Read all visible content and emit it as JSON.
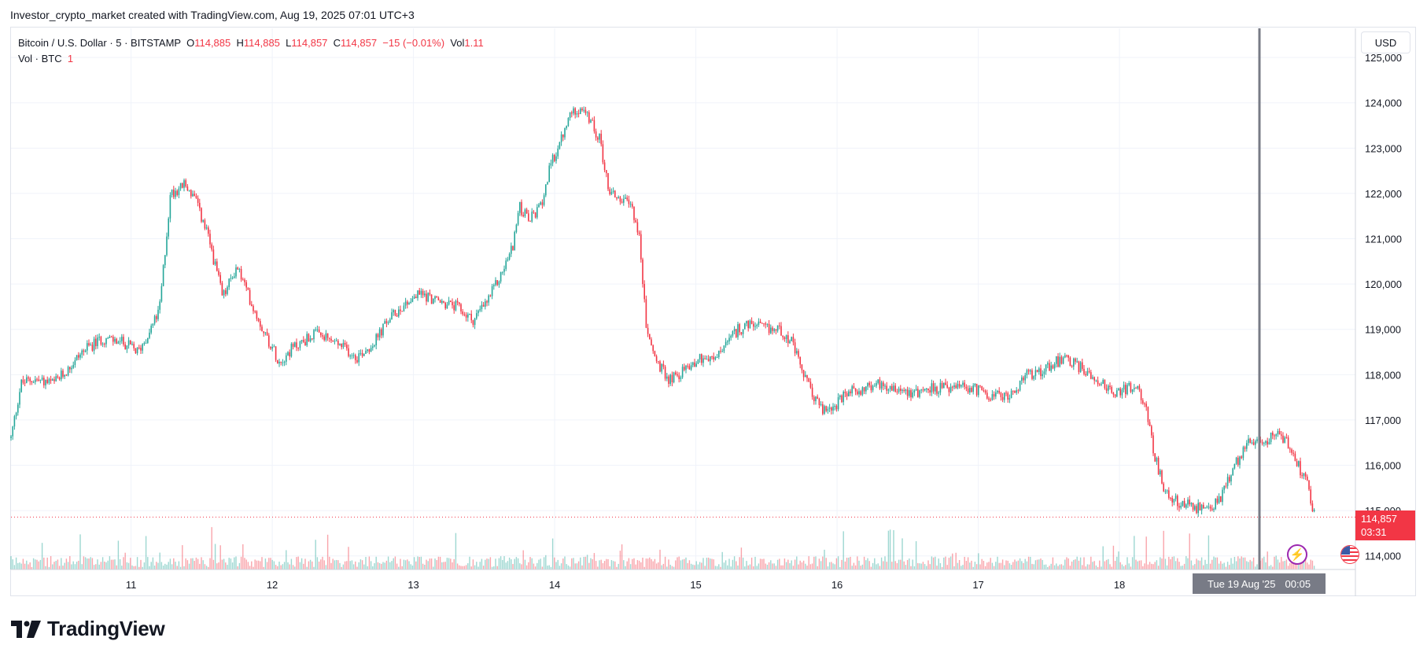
{
  "header": {
    "text": "Investor_crypto_market created with TradingView.com, Aug 19, 2025 07:01 UTC+3"
  },
  "legend": {
    "symbol": "Bitcoin / U.S. Dollar · 5 · BITSTAMP",
    "o_label": "O",
    "o_value": "114,885",
    "h_label": "H",
    "h_value": "114,885",
    "l_label": "L",
    "l_value": "114,857",
    "c_label": "C",
    "c_value": "114,857",
    "change": "−15 (−0.01%)",
    "vol_label": "Vol",
    "vol_value": "1.11",
    "vol_row_label": "Vol · BTC",
    "vol_row_value": "1"
  },
  "currency_button": "USD",
  "price_badge": {
    "price": "114,857",
    "countdown": "03:31"
  },
  "crosshair_time": {
    "date": "Tue 19 Aug '25",
    "time": "00:05"
  },
  "footer": {
    "brand": "TradingView"
  },
  "colors": {
    "up": "#26a69a",
    "down": "#f23645",
    "grid": "#f0f3fa",
    "text": "#131722",
    "crosshair": "#787b86"
  },
  "icons": {
    "logo": "tradingview-logo-icon",
    "flash": "lightning-icon",
    "flag": "us-flag-icon"
  },
  "chart_data": {
    "type": "candlestick",
    "title": "Bitcoin / U.S. Dollar · 5 · BITSTAMP",
    "x_tick_labels": [
      "11",
      "12",
      "13",
      "14",
      "15",
      "16",
      "17",
      "18"
    ],
    "y_tick_labels": [
      "114,000",
      "115,000",
      "116,000",
      "117,000",
      "118,000",
      "119,000",
      "120,000",
      "121,000",
      "122,000",
      "123,000",
      "124,000",
      "125,000"
    ],
    "ylim": [
      113700,
      125100
    ],
    "last_price": 114857,
    "price_path": [
      {
        "x": 10.15,
        "y": 116600
      },
      {
        "x": 10.22,
        "y": 117800
      },
      {
        "x": 10.3,
        "y": 117900
      },
      {
        "x": 10.45,
        "y": 117800
      },
      {
        "x": 10.55,
        "y": 118100
      },
      {
        "x": 10.65,
        "y": 118500
      },
      {
        "x": 10.8,
        "y": 118800
      },
      {
        "x": 10.95,
        "y": 118700
      },
      {
        "x": 11.05,
        "y": 118500
      },
      {
        "x": 11.12,
        "y": 118900
      },
      {
        "x": 11.2,
        "y": 119400
      },
      {
        "x": 11.28,
        "y": 122000
      },
      {
        "x": 11.38,
        "y": 122200
      },
      {
        "x": 11.45,
        "y": 121900
      },
      {
        "x": 11.55,
        "y": 121000
      },
      {
        "x": 11.65,
        "y": 119700
      },
      {
        "x": 11.75,
        "y": 120400
      },
      {
        "x": 11.85,
        "y": 119600
      },
      {
        "x": 11.95,
        "y": 118900
      },
      {
        "x": 12.05,
        "y": 118300
      },
      {
        "x": 12.15,
        "y": 118600
      },
      {
        "x": 12.3,
        "y": 118900
      },
      {
        "x": 12.45,
        "y": 118700
      },
      {
        "x": 12.6,
        "y": 118400
      },
      {
        "x": 12.72,
        "y": 118700
      },
      {
        "x": 12.82,
        "y": 119200
      },
      {
        "x": 12.95,
        "y": 119600
      },
      {
        "x": 13.05,
        "y": 119800
      },
      {
        "x": 13.18,
        "y": 119600
      },
      {
        "x": 13.3,
        "y": 119500
      },
      {
        "x": 13.42,
        "y": 119200
      },
      {
        "x": 13.52,
        "y": 119600
      },
      {
        "x": 13.62,
        "y": 120200
      },
      {
        "x": 13.7,
        "y": 120800
      },
      {
        "x": 13.75,
        "y": 121700
      },
      {
        "x": 13.82,
        "y": 121400
      },
      {
        "x": 13.9,
        "y": 121700
      },
      {
        "x": 13.97,
        "y": 122600
      },
      {
        "x": 14.05,
        "y": 123200
      },
      {
        "x": 14.12,
        "y": 123800
      },
      {
        "x": 14.18,
        "y": 123900
      },
      {
        "x": 14.25,
        "y": 123600
      },
      {
        "x": 14.32,
        "y": 123200
      },
      {
        "x": 14.38,
        "y": 122100
      },
      {
        "x": 14.45,
        "y": 121900
      },
      {
        "x": 14.55,
        "y": 121700
      },
      {
        "x": 14.6,
        "y": 121000
      },
      {
        "x": 14.65,
        "y": 119000
      },
      {
        "x": 14.72,
        "y": 118300
      },
      {
        "x": 14.8,
        "y": 117900
      },
      {
        "x": 14.88,
        "y": 118000
      },
      {
        "x": 14.95,
        "y": 118200
      },
      {
        "x": 15.05,
        "y": 118400
      },
      {
        "x": 15.12,
        "y": 118300
      },
      {
        "x": 15.2,
        "y": 118600
      },
      {
        "x": 15.3,
        "y": 119000
      },
      {
        "x": 15.4,
        "y": 119100
      },
      {
        "x": 15.5,
        "y": 119000
      },
      {
        "x": 15.6,
        "y": 119000
      },
      {
        "x": 15.68,
        "y": 118700
      },
      {
        "x": 15.75,
        "y": 118100
      },
      {
        "x": 15.82,
        "y": 117600
      },
      {
        "x": 15.9,
        "y": 117200
      },
      {
        "x": 15.98,
        "y": 117300
      },
      {
        "x": 16.08,
        "y": 117600
      },
      {
        "x": 16.2,
        "y": 117700
      },
      {
        "x": 16.3,
        "y": 117800
      },
      {
        "x": 16.45,
        "y": 117700
      },
      {
        "x": 16.55,
        "y": 117600
      },
      {
        "x": 16.65,
        "y": 117700
      },
      {
        "x": 16.8,
        "y": 117700
      },
      {
        "x": 16.95,
        "y": 117700
      },
      {
        "x": 17.05,
        "y": 117600
      },
      {
        "x": 17.15,
        "y": 117500
      },
      {
        "x": 17.25,
        "y": 117600
      },
      {
        "x": 17.35,
        "y": 118000
      },
      {
        "x": 17.45,
        "y": 118100
      },
      {
        "x": 17.55,
        "y": 118300
      },
      {
        "x": 17.65,
        "y": 118300
      },
      {
        "x": 17.75,
        "y": 118100
      },
      {
        "x": 17.85,
        "y": 117900
      },
      {
        "x": 17.95,
        "y": 117600
      },
      {
        "x": 18.05,
        "y": 117700
      },
      {
        "x": 18.12,
        "y": 117700
      },
      {
        "x": 18.18,
        "y": 117400
      },
      {
        "x": 18.25,
        "y": 116200
      },
      {
        "x": 18.32,
        "y": 115400
      },
      {
        "x": 18.4,
        "y": 115200
      },
      {
        "x": 18.5,
        "y": 115100
      },
      {
        "x": 18.6,
        "y": 115000
      },
      {
        "x": 18.7,
        "y": 115200
      },
      {
        "x": 18.78,
        "y": 115700
      },
      {
        "x": 18.85,
        "y": 116200
      },
      {
        "x": 18.92,
        "y": 116600
      },
      {
        "x": 19.0,
        "y": 116400
      },
      {
        "x": 19.06,
        "y": 116600
      },
      {
        "x": 19.12,
        "y": 116800
      },
      {
        "x": 19.18,
        "y": 116500
      },
      {
        "x": 19.23,
        "y": 116300
      },
      {
        "x": 19.28,
        "y": 115900
      },
      {
        "x": 19.33,
        "y": 115700
      },
      {
        "x": 19.37,
        "y": 115000
      },
      {
        "x": 19.39,
        "y": 114857
      }
    ]
  }
}
